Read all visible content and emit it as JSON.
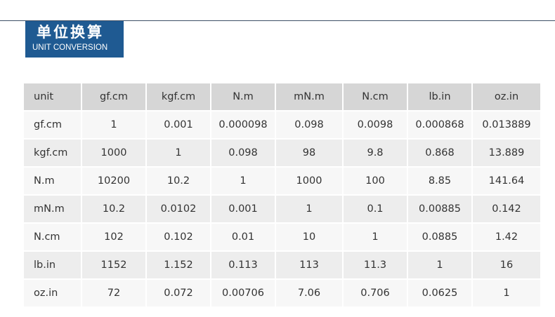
{
  "header": {
    "title_cn": "单位换算",
    "title_en": "UNIT CONVERSION"
  },
  "colors": {
    "brand_blue": "#1f5a92",
    "header_row_bg": "#d6d6d6",
    "alt_row_bg": "#ededed",
    "plain_row_bg": "#f7f7f7"
  },
  "table": {
    "columns": [
      "unit",
      "gf.cm",
      "kgf.cm",
      "N.m",
      "mN.m",
      "N.cm",
      "lb.in",
      "oz.in"
    ],
    "rows": [
      [
        "gf.cm",
        "1",
        "0.001",
        "0.000098",
        "0.098",
        "0.0098",
        "0.000868",
        "0.013889"
      ],
      [
        "kgf.cm",
        "1000",
        "1",
        "0.098",
        "98",
        "9.8",
        "0.868",
        "13.889"
      ],
      [
        "N.m",
        "10200",
        "10.2",
        "1",
        "1000",
        "100",
        "8.85",
        "141.64"
      ],
      [
        "mN.m",
        "10.2",
        "0.0102",
        "0.001",
        "1",
        "0.1",
        "0.00885",
        "0.142"
      ],
      [
        "N.cm",
        "102",
        "0.102",
        "0.01",
        "10",
        "1",
        "0.0885",
        "1.42"
      ],
      [
        "lb.in",
        "1152",
        "1.152",
        "0.113",
        "113",
        "11.3",
        "1",
        "16"
      ],
      [
        "oz.in",
        "72",
        "0.072",
        "0.00706",
        "7.06",
        "0.706",
        "0.0625",
        "1"
      ]
    ]
  }
}
